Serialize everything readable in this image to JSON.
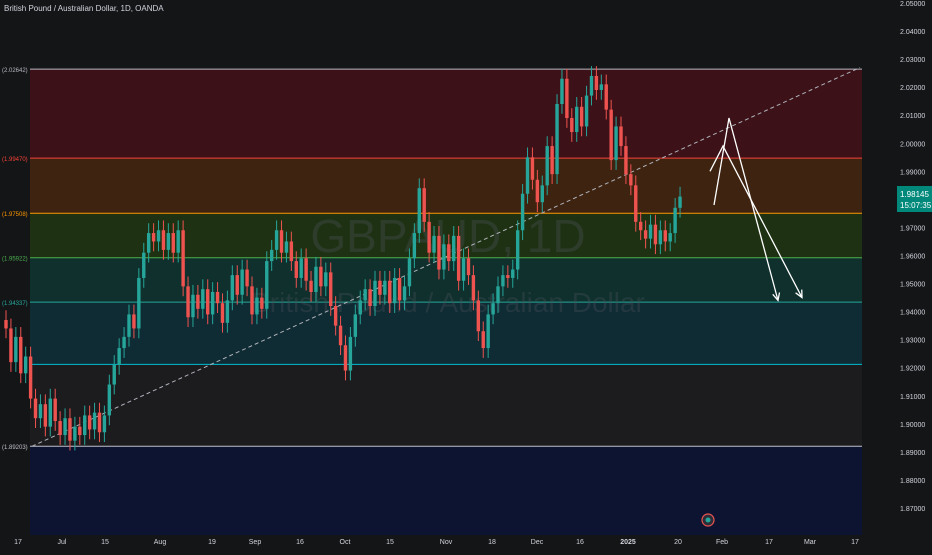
{
  "header": {
    "title": "British Pound / Australian Dollar, 1D, OANDA"
  },
  "watermark": {
    "symbol": "GBPAUD, 1D",
    "name": "British Pound / Australian Dollar"
  },
  "colors": {
    "background": "#141517",
    "up": "#26a69a",
    "down": "#ef5350",
    "axis_text": "#d1d4dc",
    "trendline": "#b0b3bb",
    "arrows": "#ffffff",
    "price_label_bg": "#00897b"
  },
  "chart_data": {
    "type": "candlestick",
    "title": "British Pound / Australian Dollar, 1D, OANDA",
    "xlabel": "",
    "ylabel": "",
    "ylim": [
      1.865,
      2.05
    ],
    "y_ticks": [
      "2.05000",
      "2.04000",
      "2.03000",
      "2.02000",
      "2.01000",
      "2.00000",
      "1.99000",
      "1.98000",
      "1.97000",
      "1.96000",
      "1.95000",
      "1.94000",
      "1.93000",
      "1.92000",
      "1.91000",
      "1.90000",
      "1.89000",
      "1.88000",
      "1.87000"
    ],
    "x_ticks": [
      "17",
      "Jul",
      "15",
      "Aug",
      "19",
      "Sep",
      "16",
      "Oct",
      "15",
      "Nov",
      "18",
      "Dec",
      "16",
      "2025",
      "20",
      "Feb",
      "17",
      "Mar",
      "17"
    ],
    "current_price": "1.98145",
    "countdown": "15:07:35",
    "fib_levels": [
      {
        "label": "(2.02642)",
        "value": 2.02642,
        "color": "#b7b7c0",
        "fill": "#3c1218"
      },
      {
        "label": "(1.99470)",
        "value": 1.9947,
        "color": "#f44336",
        "fill": "#3e2310"
      },
      {
        "label": "(1.97508)",
        "value": 1.97508,
        "color": "#ff9800",
        "fill": "#1e3213"
      },
      {
        "label": "(1.95922)",
        "value": 1.95922,
        "color": "#4caf50",
        "fill": "#0f302d"
      },
      {
        "label": "(1.94337)",
        "value": 1.94337,
        "color": "#26a69a",
        "fill": "#0f2b33"
      },
      {
        "label": "",
        "value": 1.9212,
        "color": "#00bcd4",
        "fill": "#1c1c1f"
      },
      {
        "label": "(1.89203)",
        "value": 1.89203,
        "color": "#c0c0c8",
        "fill": "#0c1432"
      }
    ],
    "trendline": {
      "start": [
        "Jun 24",
        1.892
      ],
      "end": [
        "Mar 10",
        2.027
      ]
    },
    "projection_arrows": [
      {
        "from": [
          "Jan 23",
          1.978
        ],
        "peak": [
          "Jan 27",
          2.009
        ],
        "to": [
          "Feb 8",
          1.944
        ]
      },
      {
        "from": [
          "Jan 23",
          1.99
        ],
        "peak": [
          "Jan 26",
          1.999
        ],
        "to": [
          "Feb 12",
          1.945
        ]
      }
    ],
    "series": [
      {
        "values": [
          [
            1.937,
            1.934
          ],
          [
            1.934,
            1.922
          ],
          [
            1.922,
            1.931
          ],
          [
            1.931,
            1.918
          ],
          [
            1.918,
            1.924
          ],
          [
            1.924,
            1.909
          ],
          [
            1.909,
            1.902
          ],
          [
            1.902,
            1.907
          ],
          [
            1.907,
            1.899
          ],
          [
            1.899,
            1.909
          ],
          [
            1.909,
            1.901
          ],
          [
            1.901,
            1.896
          ],
          [
            1.896,
            1.902
          ],
          [
            1.902,
            1.894
          ],
          [
            1.894,
            1.899
          ],
          [
            1.899,
            1.896
          ],
          [
            1.896,
            1.903
          ],
          [
            1.903,
            1.898
          ],
          [
            1.898,
            1.904
          ],
          [
            1.904,
            1.897
          ],
          [
            1.897,
            1.903
          ],
          [
            1.903,
            1.914
          ],
          [
            1.914,
            1.921
          ],
          [
            1.921,
            1.927
          ],
          [
            1.927,
            1.931
          ],
          [
            1.931,
            1.939
          ],
          [
            1.939,
            1.934
          ],
          [
            1.934,
            1.952
          ],
          [
            1.952,
            1.961
          ],
          [
            1.961,
            1.968
          ],
          [
            1.968,
            1.965
          ],
          [
            1.965,
            1.969
          ],
          [
            1.969,
            1.962
          ],
          [
            1.962,
            1.968
          ],
          [
            1.968,
            1.961
          ],
          [
            1.961,
            1.969
          ],
          [
            1.969,
            1.949
          ],
          [
            1.949,
            1.938
          ],
          [
            1.938,
            1.946
          ],
          [
            1.946,
            1.941
          ],
          [
            1.941,
            1.948
          ],
          [
            1.948,
            1.939
          ],
          [
            1.939,
            1.947
          ],
          [
            1.947,
            1.943
          ],
          [
            1.943,
            1.936
          ],
          [
            1.936,
            1.944
          ],
          [
            1.944,
            1.953
          ],
          [
            1.953,
            1.946
          ],
          [
            1.946,
            1.955
          ],
          [
            1.955,
            1.949
          ],
          [
            1.949,
            1.939
          ],
          [
            1.939,
            1.945
          ],
          [
            1.945,
            1.941
          ],
          [
            1.941,
            1.958
          ],
          [
            1.958,
            1.962
          ],
          [
            1.962,
            1.969
          ],
          [
            1.969,
            1.961
          ],
          [
            1.961,
            1.965
          ],
          [
            1.965,
            1.958
          ],
          [
            1.958,
            1.952
          ],
          [
            1.952,
            1.959
          ],
          [
            1.959,
            1.951
          ],
          [
            1.951,
            1.947
          ],
          [
            1.947,
            1.956
          ],
          [
            1.956,
            1.949
          ],
          [
            1.949,
            1.954
          ],
          [
            1.954,
            1.942
          ],
          [
            1.942,
            1.935
          ],
          [
            1.935,
            1.928
          ],
          [
            1.928,
            1.919
          ],
          [
            1.919,
            1.931
          ],
          [
            1.931,
            1.939
          ],
          [
            1.939,
            1.944
          ],
          [
            1.944,
            1.948
          ],
          [
            1.948,
            1.942
          ],
          [
            1.942,
            1.951
          ],
          [
            1.951,
            1.946
          ],
          [
            1.946,
            1.951
          ],
          [
            1.951,
            1.943
          ],
          [
            1.943,
            1.952
          ],
          [
            1.952,
            1.944
          ],
          [
            1.944,
            1.949
          ],
          [
            1.949,
            1.959
          ],
          [
            1.959,
            1.968
          ],
          [
            1.968,
            1.984
          ],
          [
            1.984,
            1.972
          ],
          [
            1.972,
            1.961
          ],
          [
            1.961,
            1.967
          ],
          [
            1.967,
            1.955
          ],
          [
            1.955,
            1.964
          ],
          [
            1.964,
            1.958
          ],
          [
            1.958,
            1.967
          ],
          [
            1.967,
            1.951
          ],
          [
            1.951,
            1.959
          ],
          [
            1.959,
            1.953
          ],
          [
            1.953,
            1.944
          ],
          [
            1.944,
            1.933
          ],
          [
            1.933,
            1.927
          ],
          [
            1.927,
            1.939
          ],
          [
            1.939,
            1.943
          ],
          [
            1.943,
            1.949
          ],
          [
            1.949,
            1.953
          ],
          [
            1.953,
            1.952
          ],
          [
            1.952,
            1.955
          ],
          [
            1.955,
            1.969
          ],
          [
            1.969,
            1.982
          ],
          [
            1.982,
            1.995
          ],
          [
            1.995,
            1.987
          ],
          [
            1.987,
            1.979
          ],
          [
            1.979,
            1.985
          ],
          [
            1.985,
            1.999
          ],
          [
            1.999,
            1.989
          ],
          [
            1.989,
            2.014
          ],
          [
            2.014,
            2.023
          ],
          [
            2.023,
            2.009
          ],
          [
            2.009,
            2.004
          ],
          [
            2.004,
            2.013
          ],
          [
            2.013,
            2.006
          ],
          [
            2.006,
            2.017
          ],
          [
            2.017,
            2.024
          ],
          [
            2.024,
            2.019
          ],
          [
            2.019,
            2.021
          ],
          [
            2.021,
            2.012
          ],
          [
            2.012,
            1.994
          ],
          [
            1.994,
            2.006
          ],
          [
            2.006,
            1.999
          ],
          [
            1.999,
            1.989
          ],
          [
            1.989,
            1.985
          ],
          [
            1.985,
            1.972
          ],
          [
            1.972,
            1.969
          ],
          [
            1.969,
            1.966
          ],
          [
            1.966,
            1.971
          ],
          [
            1.971,
            1.964
          ],
          [
            1.964,
            1.969
          ],
          [
            1.969,
            1.965
          ],
          [
            1.965,
            1.968
          ],
          [
            1.968,
            1.977
          ],
          [
            1.977,
            1.981
          ]
        ]
      }
    ]
  }
}
